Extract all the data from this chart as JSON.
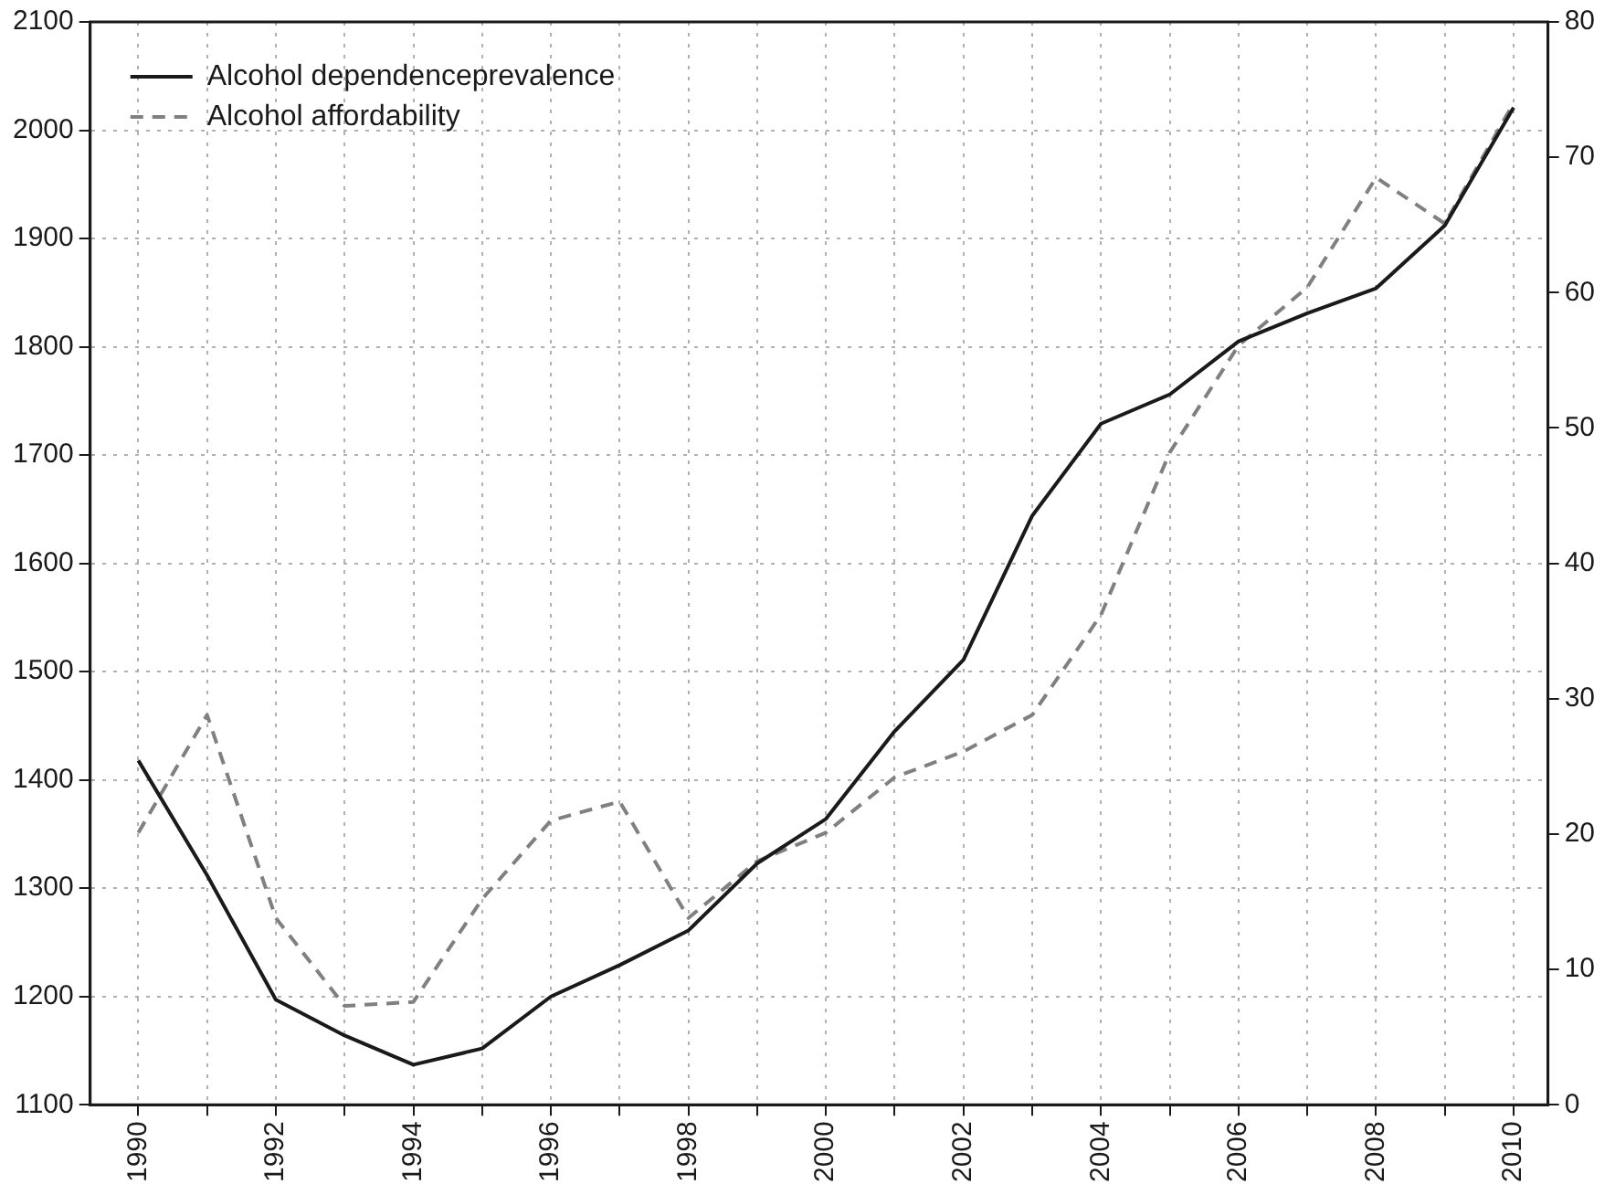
{
  "chart_data": {
    "type": "line",
    "x": [
      1990,
      1991,
      1992,
      1993,
      1994,
      1995,
      1996,
      1997,
      1998,
      1999,
      2000,
      2001,
      2002,
      2003,
      2004,
      2005,
      2006,
      2007,
      2008,
      2009,
      2010
    ],
    "series": [
      {
        "name": "Alcohol dependenceprevalence",
        "color": "#1a1a1a",
        "line_style": "solid",
        "values": [
          1418,
          1312,
          1197,
          1164,
          1137,
          1152,
          1200,
          1229,
          1261,
          1323,
          1364,
          1445,
          1511,
          1644,
          1729,
          1756,
          1805,
          1831,
          1854,
          1912,
          2021
        ]
      },
      {
        "name": "Alcohol affordability",
        "color": "#808080",
        "line_style": "dashed",
        "axis": "y2",
        "values": [
          20.1,
          28.8,
          13.8,
          7.3,
          7.6,
          15.2,
          21.0,
          22.4,
          13.8,
          18.0,
          20.1,
          24.2,
          26.1,
          28.8,
          36.2,
          48.2,
          56.1,
          60.4,
          68.5,
          65.1,
          74.0
        ]
      }
    ],
    "xlim": [
      1989.3,
      2010.5
    ],
    "xticks": [
      1990,
      {
        "value": 1991,
        "label": null
      },
      1992,
      {
        "value": 1993,
        "label": null
      },
      1994,
      {
        "value": 1995,
        "label": null
      },
      1996,
      {
        "value": 1997,
        "label": null
      },
      1998,
      {
        "value": 1999,
        "label": null
      },
      2000,
      {
        "value": 2001,
        "label": null
      },
      2002,
      {
        "value": 2003,
        "label": null
      },
      2004,
      {
        "value": 2005,
        "label": null
      },
      2006,
      {
        "value": 2007,
        "label": null
      },
      2008,
      {
        "value": 2009,
        "label": null
      },
      2010
    ],
    "ylim": [
      1100,
      2100
    ],
    "yticks": [
      1100,
      1200,
      1300,
      1400,
      1500,
      1600,
      1700,
      1800,
      1900,
      2000,
      2100
    ],
    "y2lim": [
      0,
      80
    ],
    "y2ticks": [
      0,
      10,
      20,
      30,
      40,
      50,
      60,
      70,
      80
    ],
    "grid": true,
    "legend": "top left",
    "marker": "none"
  }
}
